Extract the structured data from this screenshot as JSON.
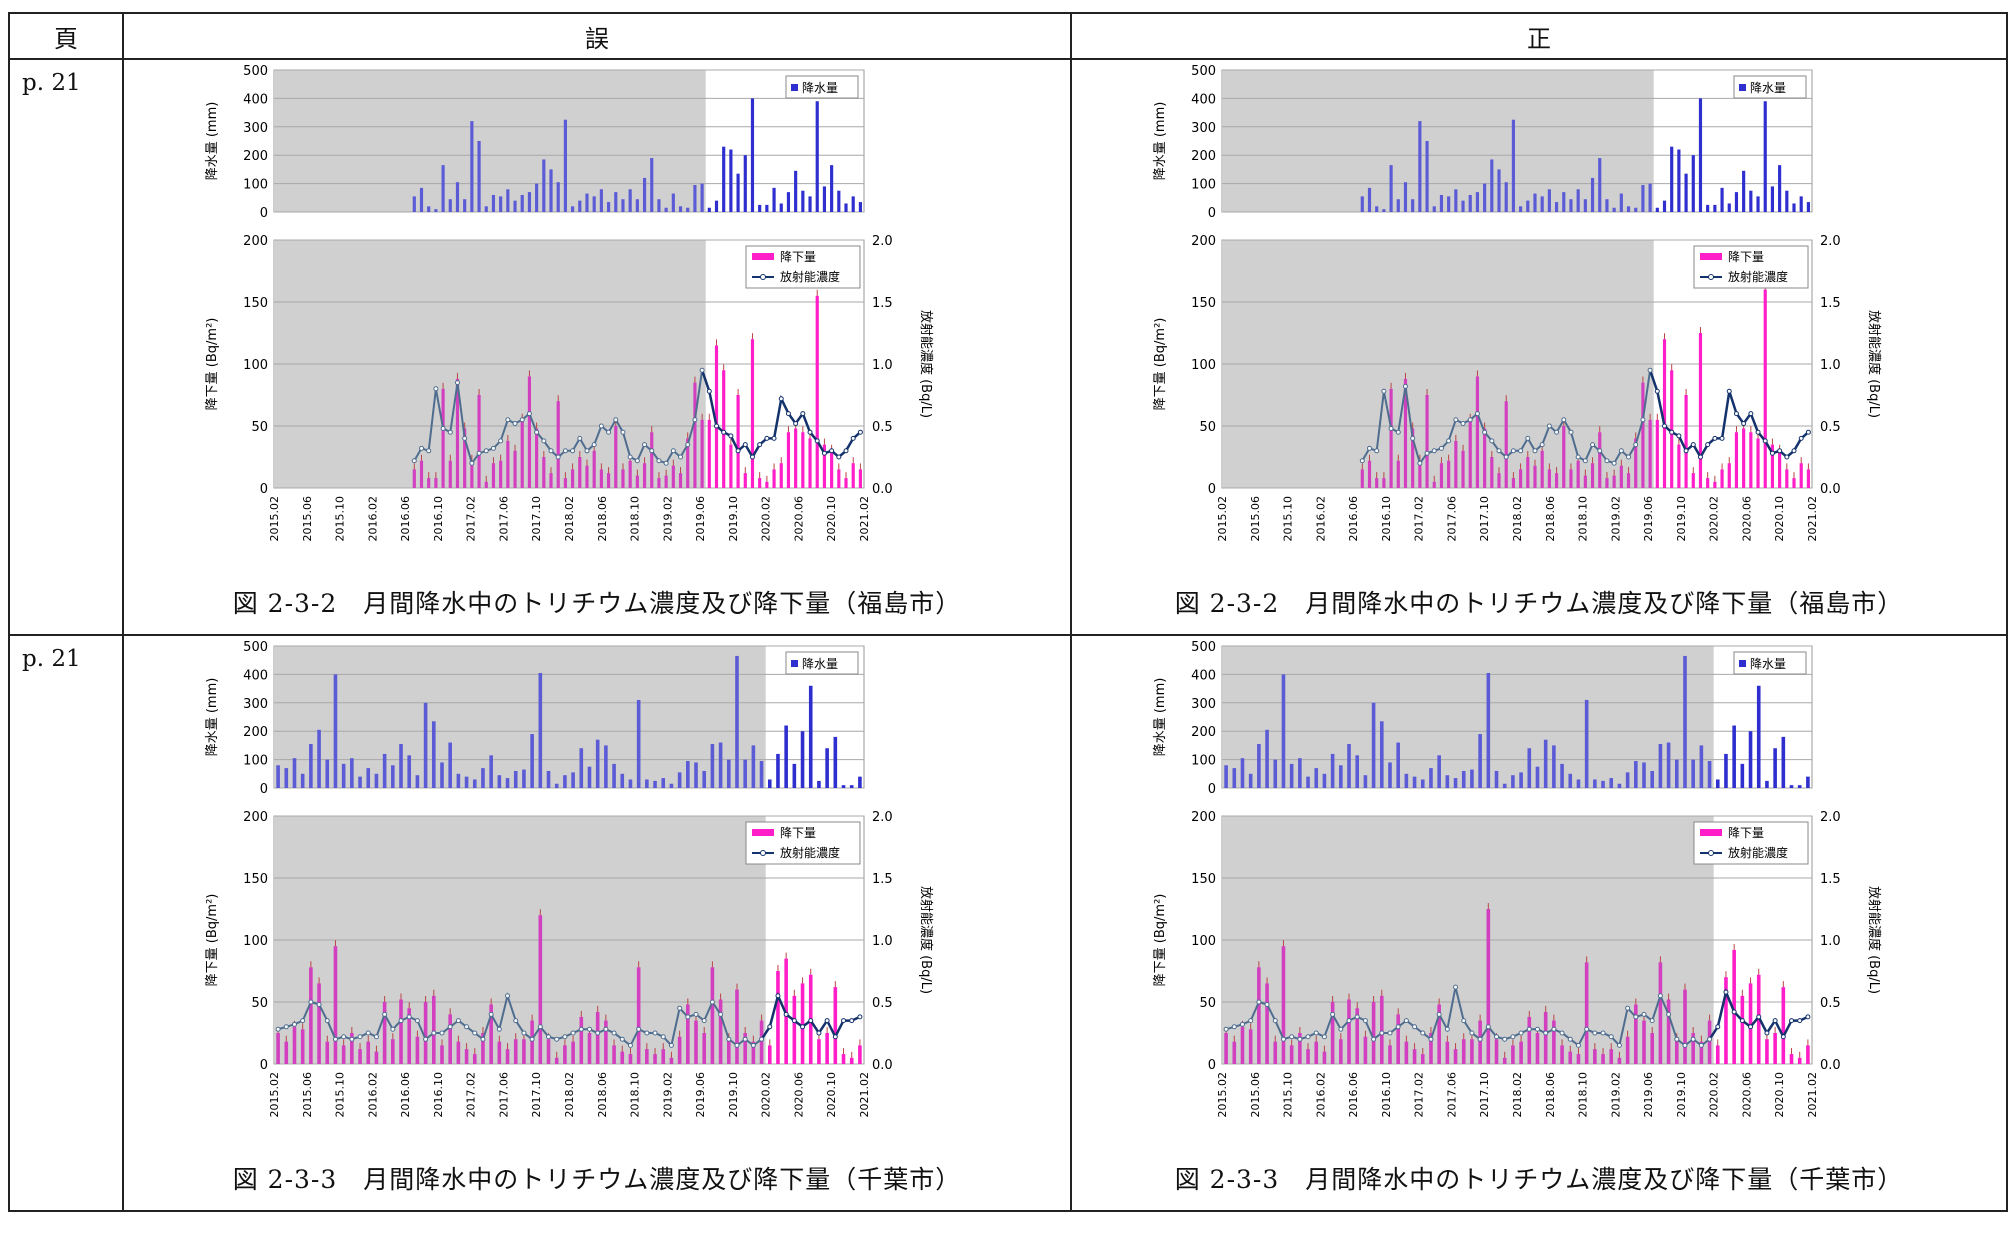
{
  "header": {
    "col_page": "頁",
    "col_wrong": "誤",
    "col_right": "正"
  },
  "rows": [
    {
      "page": "p. 21",
      "wrong_caption": "図 2-3-2　月間降水中のトリチウム濃度及び降下量（福島市）",
      "right_caption": "図 2-3-2　月間降水中のトリチウム濃度及び降下量（福島市）"
    },
    {
      "page": "p. 21",
      "wrong_caption": "図 2-3-3　月間降水中のトリチウム濃度及び降下量（千葉市）",
      "right_caption": "図 2-3-3　月間降水中のトリチウム濃度及び降下量（千葉市）"
    }
  ],
  "colors": {
    "precip_bar": "#5b5bd6",
    "precip_bar_recent": "#2f2fd0",
    "deposition_bar": "#d23fbf",
    "deposition_bar_recent": "#ff1ec8",
    "concentration_line": "#4f6d8f",
    "concentration_line_recent": "#14326b",
    "shaded_period": "#d0d0d0"
  },
  "chart_data": [
    {
      "panel": "wrong-fukushima",
      "type": "bar",
      "x_tick_labels": [
        "2015.02",
        "2015.06",
        "2015.10",
        "2016.02",
        "2016.06",
        "2016.10",
        "2017.02",
        "2017.06",
        "2017.10",
        "2018.02",
        "2018.06",
        "2018.10",
        "2019.02",
        "2019.06",
        "2019.10",
        "2020.02",
        "2020.06",
        "2020.10",
        "2021.02"
      ],
      "precip": {
        "ylabel": "降水量 (mm)",
        "ylim": [
          0,
          500
        ],
        "yticks": [
          "0",
          "100",
          "200",
          "300",
          "400",
          "500"
        ],
        "legend": "降水量",
        "values": [
          0,
          0,
          0,
          0,
          0,
          0,
          0,
          0,
          0,
          0,
          0,
          0,
          0,
          0,
          0,
          0,
          0,
          0,
          0,
          55,
          85,
          20,
          10,
          165,
          45,
          105,
          45,
          320,
          250,
          20,
          60,
          55,
          80,
          40,
          60,
          70,
          100,
          185,
          150,
          105,
          325,
          20,
          40,
          65,
          55,
          80,
          35,
          70,
          45,
          80,
          45,
          120,
          190,
          45,
          15,
          65,
          20,
          15,
          95,
          100,
          15,
          40,
          230,
          220,
          135,
          200,
          400,
          25,
          25,
          85,
          30,
          70,
          145,
          75,
          55,
          390,
          90,
          165,
          75,
          30,
          55,
          35
        ]
      },
      "deposition": {
        "ylabel": "降下量 (Bq/m²)",
        "ylim": [
          0,
          200
        ],
        "yticks": [
          "0",
          "50",
          "100",
          "150",
          "200"
        ],
        "legend": "降下量",
        "values": [
          0,
          0,
          0,
          0,
          0,
          0,
          0,
          0,
          0,
          0,
          0,
          0,
          0,
          0,
          0,
          0,
          0,
          0,
          0,
          15,
          22,
          8,
          8,
          80,
          22,
          88,
          48,
          22,
          75,
          5,
          20,
          22,
          38,
          30,
          55,
          90,
          48,
          25,
          12,
          70,
          8,
          15,
          25,
          18,
          30,
          15,
          12,
          50,
          15,
          22,
          10,
          20,
          45,
          8,
          10,
          18,
          12,
          40,
          85,
          55,
          55,
          115,
          95,
          35,
          75,
          12,
          120,
          8,
          5,
          15,
          20,
          45,
          48,
          45,
          40,
          155,
          35,
          30,
          15,
          8,
          20,
          15
        ]
      },
      "concentration": {
        "ylabel": "放射能濃度 (Bq/L)",
        "ylim": [
          0,
          2
        ],
        "yticks": [
          "0.0",
          "0.5",
          "1.0",
          "1.5",
          "2.0"
        ],
        "legend": "放射能濃度",
        "values": [
          null,
          null,
          null,
          null,
          null,
          null,
          null,
          null,
          null,
          null,
          null,
          null,
          null,
          null,
          null,
          null,
          null,
          null,
          null,
          0.22,
          0.32,
          0.3,
          0.8,
          0.48,
          0.45,
          0.85,
          0.4,
          0.2,
          0.28,
          0.3,
          0.32,
          0.38,
          0.55,
          0.52,
          0.55,
          0.6,
          0.45,
          0.38,
          0.3,
          0.25,
          0.3,
          0.3,
          0.4,
          0.3,
          0.35,
          0.5,
          0.45,
          0.55,
          0.45,
          0.25,
          0.22,
          0.35,
          0.3,
          0.22,
          0.2,
          0.3,
          0.25,
          0.35,
          0.55,
          0.95,
          0.78,
          0.5,
          0.45,
          0.42,
          0.3,
          0.35,
          0.25,
          0.35,
          0.4,
          0.4,
          0.72,
          0.6,
          0.52,
          0.6,
          0.45,
          0.38,
          0.28,
          0.3,
          0.25,
          0.3,
          0.4,
          0.45
        ]
      },
      "shaded_until_index": 60
    },
    {
      "panel": "right-fukushima",
      "type": "bar",
      "x_tick_labels": [
        "2015.02",
        "2015.06",
        "2015.10",
        "2016.02",
        "2016.06",
        "2016.10",
        "2017.02",
        "2017.06",
        "2017.10",
        "2018.02",
        "2018.06",
        "2018.10",
        "2019.02",
        "2019.06",
        "2019.10",
        "2020.02",
        "2020.06",
        "2020.10",
        "2021.02"
      ],
      "precip": {
        "ylabel": "降水量 (mm)",
        "ylim": [
          0,
          500
        ],
        "yticks": [
          "0",
          "100",
          "200",
          "300",
          "400",
          "500"
        ],
        "legend": "降水量",
        "values": [
          0,
          0,
          0,
          0,
          0,
          0,
          0,
          0,
          0,
          0,
          0,
          0,
          0,
          0,
          0,
          0,
          0,
          0,
          0,
          55,
          85,
          20,
          10,
          165,
          45,
          105,
          45,
          320,
          250,
          20,
          60,
          55,
          80,
          40,
          60,
          70,
          100,
          185,
          150,
          105,
          325,
          20,
          40,
          65,
          55,
          80,
          35,
          70,
          45,
          80,
          45,
          120,
          190,
          45,
          15,
          65,
          20,
          15,
          95,
          100,
          15,
          40,
          230,
          220,
          135,
          200,
          400,
          25,
          25,
          85,
          30,
          70,
          145,
          75,
          55,
          390,
          90,
          165,
          75,
          30,
          55,
          35
        ]
      },
      "deposition": {
        "ylabel": "降下量 (Bq/m²)",
        "ylim": [
          0,
          200
        ],
        "yticks": [
          "0",
          "50",
          "100",
          "150",
          "200"
        ],
        "legend": "降下量",
        "values": [
          0,
          0,
          0,
          0,
          0,
          0,
          0,
          0,
          0,
          0,
          0,
          0,
          0,
          0,
          0,
          0,
          0,
          0,
          0,
          15,
          22,
          8,
          8,
          80,
          22,
          88,
          48,
          22,
          75,
          5,
          20,
          22,
          38,
          30,
          55,
          90,
          48,
          25,
          12,
          70,
          8,
          15,
          25,
          18,
          30,
          15,
          12,
          50,
          15,
          22,
          10,
          20,
          45,
          8,
          10,
          18,
          12,
          40,
          85,
          55,
          55,
          120,
          95,
          35,
          75,
          12,
          125,
          8,
          5,
          15,
          20,
          45,
          48,
          45,
          40,
          160,
          35,
          30,
          15,
          8,
          20,
          15
        ]
      },
      "concentration": {
        "ylabel": "放射能濃度 (Bq/L)",
        "ylim": [
          0,
          2
        ],
        "yticks": [
          "0.0",
          "0.5",
          "1.0",
          "1.5",
          "2.0"
        ],
        "legend": "放射能濃度",
        "values": [
          null,
          null,
          null,
          null,
          null,
          null,
          null,
          null,
          null,
          null,
          null,
          null,
          null,
          null,
          null,
          null,
          null,
          null,
          null,
          0.22,
          0.32,
          0.3,
          0.78,
          0.48,
          0.45,
          0.82,
          0.4,
          0.2,
          0.28,
          0.3,
          0.32,
          0.38,
          0.55,
          0.52,
          0.55,
          0.6,
          0.45,
          0.38,
          0.3,
          0.25,
          0.3,
          0.3,
          0.4,
          0.3,
          0.35,
          0.5,
          0.45,
          0.55,
          0.45,
          0.25,
          0.22,
          0.35,
          0.3,
          0.22,
          0.2,
          0.3,
          0.25,
          0.35,
          0.55,
          0.95,
          0.78,
          0.5,
          0.45,
          0.42,
          0.3,
          0.35,
          0.25,
          0.35,
          0.4,
          0.4,
          0.78,
          0.6,
          0.52,
          0.6,
          0.45,
          0.38,
          0.28,
          0.3,
          0.25,
          0.3,
          0.4,
          0.45
        ]
      },
      "shaded_until_index": 60
    },
    {
      "panel": "wrong-chiba",
      "type": "bar",
      "x_tick_labels": [
        "2015.02",
        "2015.06",
        "2015.10",
        "2016.02",
        "2016.06",
        "2016.10",
        "2017.02",
        "2017.06",
        "2017.10",
        "2018.02",
        "2018.06",
        "2018.10",
        "2019.02",
        "2019.06",
        "2019.10",
        "2020.02",
        "2020.06",
        "2020.10",
        "2021.02"
      ],
      "precip": {
        "ylabel": "降水量 (mm)",
        "ylim": [
          0,
          500
        ],
        "yticks": [
          "0",
          "100",
          "200",
          "300",
          "400",
          "500"
        ],
        "legend": "降水量",
        "values": [
          80,
          70,
          105,
          50,
          155,
          205,
          100,
          400,
          85,
          105,
          40,
          70,
          50,
          120,
          80,
          155,
          115,
          45,
          300,
          235,
          90,
          160,
          50,
          40,
          30,
          70,
          115,
          45,
          35,
          60,
          65,
          190,
          405,
          60,
          15,
          45,
          55,
          140,
          75,
          170,
          150,
          85,
          50,
          30,
          310,
          30,
          25,
          35,
          15,
          55,
          95,
          90,
          60,
          155,
          160,
          100,
          465,
          100,
          150,
          95,
          30,
          120,
          220,
          85,
          200,
          360,
          25,
          140,
          180,
          10,
          10,
          40
        ]
      },
      "deposition": {
        "ylabel": "降下量 (Bq/m²)",
        "ylim": [
          0,
          200
        ],
        "yticks": [
          "0",
          "50",
          "100",
          "150",
          "200"
        ],
        "legend": "降下量",
        "values": [
          25,
          18,
          30,
          28,
          78,
          65,
          18,
          95,
          15,
          25,
          12,
          18,
          10,
          50,
          20,
          52,
          45,
          22,
          50,
          55,
          15,
          40,
          18,
          12,
          8,
          25,
          48,
          18,
          12,
          20,
          20,
          35,
          120,
          20,
          5,
          15,
          18,
          38,
          25,
          42,
          35,
          15,
          10,
          8,
          78,
          12,
          8,
          12,
          5,
          22,
          48,
          35,
          25,
          78,
          52,
          20,
          60,
          25,
          18,
          35,
          15,
          75,
          85,
          55,
          65,
          72,
          20,
          25,
          62,
          8,
          5,
          15
        ]
      },
      "concentration": {
        "ylabel": "放射能濃度 (Bq/L)",
        "ylim": [
          0,
          2
        ],
        "yticks": [
          "0.0",
          "0.5",
          "1.0",
          "1.5",
          "2.0"
        ],
        "legend": "放射能濃度",
        "values": [
          0.28,
          0.3,
          0.32,
          0.35,
          0.5,
          0.48,
          0.35,
          0.2,
          0.22,
          0.2,
          0.22,
          0.25,
          0.22,
          0.4,
          0.28,
          0.35,
          0.38,
          0.35,
          0.2,
          0.25,
          0.25,
          0.3,
          0.35,
          0.3,
          0.25,
          0.2,
          0.4,
          0.28,
          0.55,
          0.35,
          0.25,
          0.2,
          0.3,
          0.22,
          0.2,
          0.22,
          0.25,
          0.28,
          0.28,
          0.25,
          0.28,
          0.25,
          0.2,
          0.15,
          0.28,
          0.25,
          0.25,
          0.22,
          0.15,
          0.45,
          0.38,
          0.4,
          0.35,
          0.5,
          0.4,
          0.2,
          0.15,
          0.2,
          0.15,
          0.2,
          0.3,
          0.55,
          0.4,
          0.35,
          0.3,
          0.35,
          0.25,
          0.35,
          0.22,
          0.35,
          0.35,
          0.38
        ]
      },
      "shaded_until_index": 60
    },
    {
      "panel": "right-chiba",
      "type": "bar",
      "x_tick_labels": [
        "2015.02",
        "2015.06",
        "2015.10",
        "2016.02",
        "2016.06",
        "2016.10",
        "2017.02",
        "2017.06",
        "2017.10",
        "2018.02",
        "2018.06",
        "2018.10",
        "2019.02",
        "2019.06",
        "2019.10",
        "2020.02",
        "2020.06",
        "2020.10",
        "2021.02"
      ],
      "precip": {
        "ylabel": "降水量 (mm)",
        "ylim": [
          0,
          500
        ],
        "yticks": [
          "0",
          "100",
          "200",
          "300",
          "400",
          "500"
        ],
        "legend": "降水量",
        "values": [
          80,
          70,
          105,
          50,
          155,
          205,
          100,
          400,
          85,
          105,
          40,
          70,
          50,
          120,
          80,
          155,
          115,
          45,
          300,
          235,
          90,
          160,
          50,
          40,
          30,
          70,
          115,
          45,
          35,
          60,
          65,
          190,
          405,
          60,
          15,
          45,
          55,
          140,
          75,
          170,
          150,
          85,
          50,
          30,
          310,
          30,
          25,
          35,
          15,
          55,
          95,
          90,
          60,
          155,
          160,
          100,
          465,
          100,
          150,
          95,
          30,
          120,
          220,
          85,
          200,
          360,
          25,
          140,
          180,
          10,
          10,
          40
        ]
      },
      "deposition": {
        "ylabel": "降下量 (Bq/m²)",
        "ylim": [
          0,
          200
        ],
        "yticks": [
          "0",
          "50",
          "100",
          "150",
          "200"
        ],
        "legend": "降下量",
        "values": [
          25,
          18,
          30,
          28,
          78,
          65,
          18,
          95,
          15,
          25,
          12,
          18,
          10,
          50,
          20,
          52,
          45,
          22,
          50,
          55,
          15,
          40,
          18,
          12,
          8,
          25,
          48,
          18,
          12,
          20,
          20,
          35,
          125,
          20,
          5,
          15,
          18,
          38,
          25,
          42,
          35,
          15,
          10,
          8,
          82,
          12,
          8,
          12,
          5,
          22,
          48,
          35,
          25,
          82,
          52,
          20,
          60,
          25,
          18,
          35,
          15,
          70,
          92,
          55,
          65,
          72,
          20,
          25,
          62,
          8,
          5,
          15
        ]
      },
      "concentration": {
        "ylabel": "放射能濃度 (Bq/L)",
        "ylim": [
          0,
          2
        ],
        "yticks": [
          "0.0",
          "0.5",
          "1.0",
          "1.5",
          "2.0"
        ],
        "legend": "放射能濃度",
        "values": [
          0.28,
          0.3,
          0.32,
          0.35,
          0.5,
          0.48,
          0.35,
          0.2,
          0.22,
          0.2,
          0.22,
          0.25,
          0.22,
          0.4,
          0.28,
          0.35,
          0.38,
          0.35,
          0.2,
          0.25,
          0.25,
          0.3,
          0.35,
          0.3,
          0.25,
          0.2,
          0.4,
          0.28,
          0.62,
          0.35,
          0.25,
          0.2,
          0.3,
          0.22,
          0.2,
          0.22,
          0.25,
          0.28,
          0.28,
          0.25,
          0.28,
          0.25,
          0.2,
          0.15,
          0.28,
          0.25,
          0.25,
          0.22,
          0.15,
          0.45,
          0.38,
          0.4,
          0.35,
          0.55,
          0.4,
          0.2,
          0.15,
          0.2,
          0.15,
          0.2,
          0.3,
          0.58,
          0.42,
          0.35,
          0.3,
          0.38,
          0.25,
          0.35,
          0.22,
          0.35,
          0.35,
          0.38
        ]
      },
      "shaded_until_index": 60
    }
  ]
}
